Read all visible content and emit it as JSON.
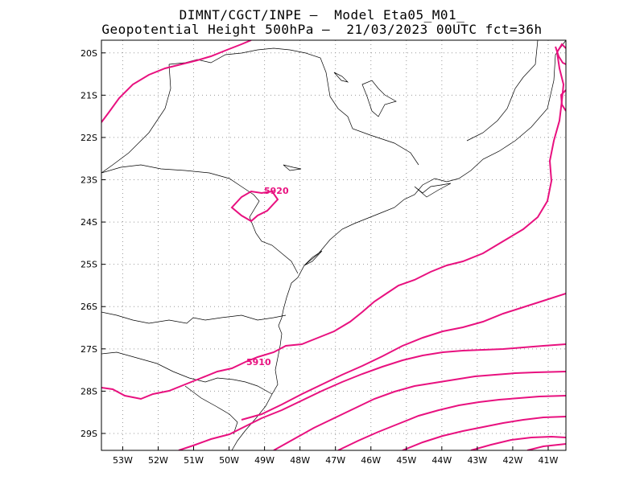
{
  "header": {
    "line1": "DIMNT/CGCT/INPE –  Model Eta05_M01_",
    "line2": "Geopotential Height 500hPa –  21/03/2023 00UTC fct=36h"
  },
  "map": {
    "lon_range": [
      -53.6,
      -40.5
    ],
    "lat_range": [
      -29.4,
      -19.7
    ],
    "lon_ticks": [
      {
        "value": -53,
        "label": "53W"
      },
      {
        "value": -52,
        "label": "52W"
      },
      {
        "value": -51,
        "label": "51W"
      },
      {
        "value": -50,
        "label": "50W"
      },
      {
        "value": -49,
        "label": "49W"
      },
      {
        "value": -48,
        "label": "48W"
      },
      {
        "value": -47,
        "label": "47W"
      },
      {
        "value": -46,
        "label": "46W"
      },
      {
        "value": -45,
        "label": "45W"
      },
      {
        "value": -44,
        "label": "44W"
      },
      {
        "value": -43,
        "label": "43W"
      },
      {
        "value": -42,
        "label": "42W"
      },
      {
        "value": -41,
        "label": "41W"
      }
    ],
    "lat_ticks": [
      {
        "value": -20,
        "label": "20S"
      },
      {
        "value": -21,
        "label": "21S"
      },
      {
        "value": -22,
        "label": "22S"
      },
      {
        "value": -23,
        "label": "23S"
      },
      {
        "value": -24,
        "label": "24S"
      },
      {
        "value": -25,
        "label": "25S"
      },
      {
        "value": -26,
        "label": "26S"
      },
      {
        "value": -27,
        "label": "27S"
      },
      {
        "value": -28,
        "label": "28S"
      },
      {
        "value": -29,
        "label": "29S"
      }
    ],
    "grid": "dotted",
    "contour_color": "#e8117f",
    "border_color": "#000000",
    "contour_labels": [
      {
        "text": "5920",
        "lon": -48.9,
        "lat": -23.2
      },
      {
        "text": "5910",
        "lon": -49.1,
        "lat": -27.3
      }
    ]
  }
}
